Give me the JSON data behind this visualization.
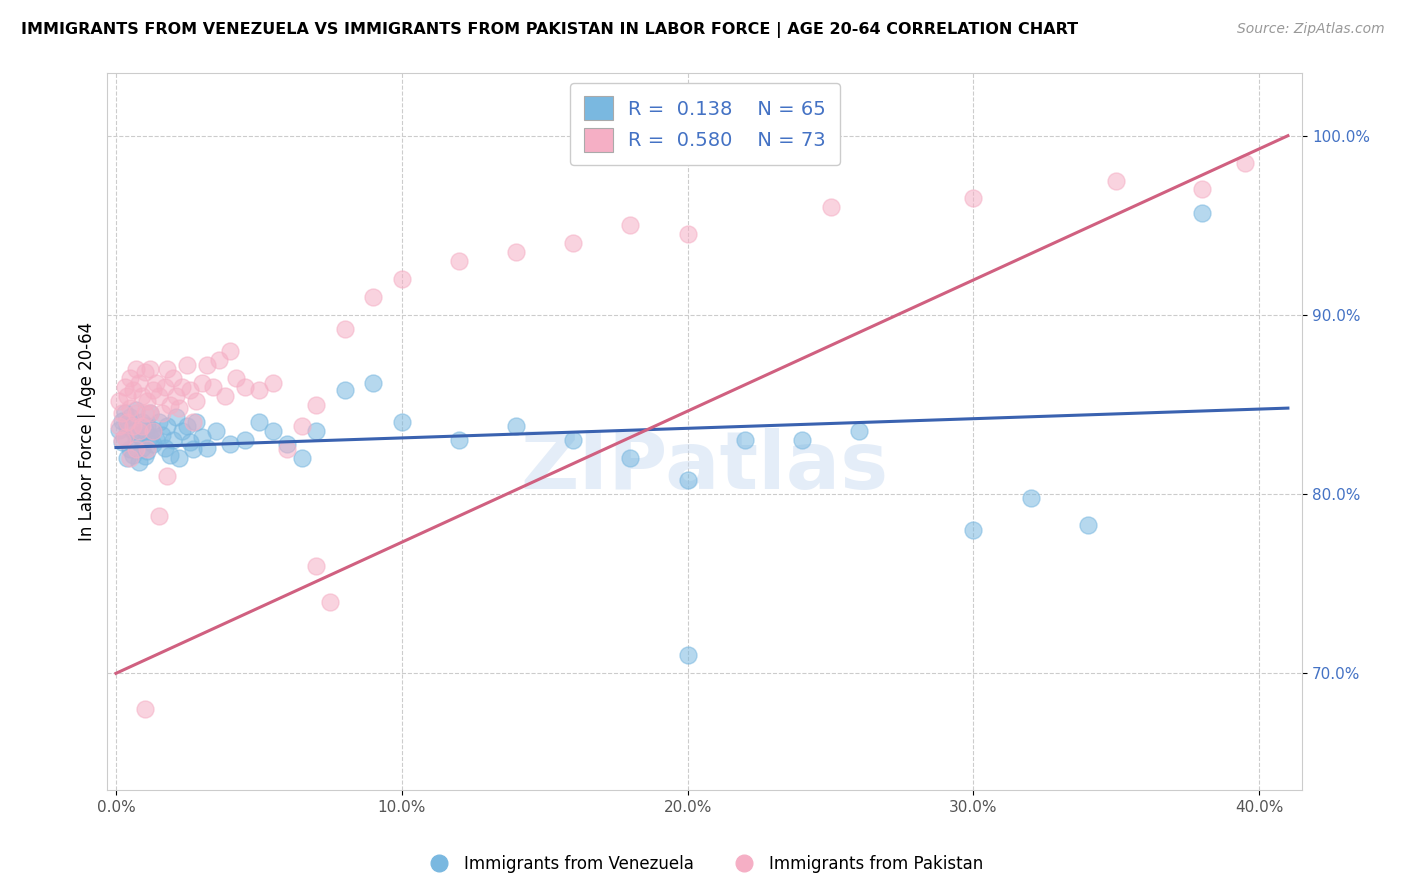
{
  "title": "IMMIGRANTS FROM VENEZUELA VS IMMIGRANTS FROM PAKISTAN IN LABOR FORCE | AGE 20-64 CORRELATION CHART",
  "source": "Source: ZipAtlas.com",
  "ylabel": "In Labor Force | Age 20-64",
  "xlim": [
    -0.003,
    0.415
  ],
  "ylim": [
    0.635,
    1.035
  ],
  "xticks": [
    0.0,
    0.1,
    0.2,
    0.3,
    0.4
  ],
  "yticks": [
    0.7,
    0.8,
    0.9,
    1.0
  ],
  "xtick_labels": [
    "0.0%",
    "10.0%",
    "20.0%",
    "30.0%",
    "40.0%"
  ],
  "ytick_labels": [
    "70.0%",
    "80.0%",
    "90.0%",
    "100.0%"
  ],
  "venezuela_color": "#7ab8e0",
  "pakistan_color": "#f5afc5",
  "line_color_venezuela": "#3a62b0",
  "line_color_pakistan": "#d06080",
  "venezuela_R": 0.138,
  "venezuela_N": 65,
  "pakistan_R": 0.58,
  "pakistan_N": 73,
  "watermark": "ZIPatlas",
  "venezuela_line_x": [
    0.0,
    0.41
  ],
  "venezuela_line_y": [
    0.826,
    0.848
  ],
  "pakistan_line_x": [
    0.0,
    0.41
  ],
  "pakistan_line_y": [
    0.7,
    1.0
  ],
  "venezuela_points_x": [
    0.001,
    0.002,
    0.002,
    0.003,
    0.003,
    0.004,
    0.004,
    0.005,
    0.005,
    0.006,
    0.006,
    0.007,
    0.007,
    0.008,
    0.008,
    0.009,
    0.009,
    0.01,
    0.01,
    0.011,
    0.011,
    0.012,
    0.012,
    0.013,
    0.013,
    0.014,
    0.015,
    0.016,
    0.017,
    0.018,
    0.019,
    0.02,
    0.021,
    0.022,
    0.023,
    0.025,
    0.026,
    0.027,
    0.028,
    0.03,
    0.032,
    0.035,
    0.04,
    0.045,
    0.05,
    0.055,
    0.06,
    0.065,
    0.07,
    0.08,
    0.09,
    0.1,
    0.12,
    0.14,
    0.16,
    0.18,
    0.2,
    0.22,
    0.24,
    0.26,
    0.3,
    0.32,
    0.34,
    0.38,
    0.2
  ],
  "venezuela_points_y": [
    0.836,
    0.829,
    0.841,
    0.832,
    0.845,
    0.838,
    0.82,
    0.843,
    0.825,
    0.835,
    0.822,
    0.83,
    0.847,
    0.833,
    0.818,
    0.84,
    0.826,
    0.835,
    0.821,
    0.838,
    0.824,
    0.832,
    0.845,
    0.828,
    0.836,
    0.831,
    0.84,
    0.833,
    0.826,
    0.838,
    0.822,
    0.83,
    0.843,
    0.82,
    0.835,
    0.838,
    0.829,
    0.825,
    0.84,
    0.832,
    0.826,
    0.835,
    0.828,
    0.83,
    0.84,
    0.835,
    0.828,
    0.82,
    0.835,
    0.858,
    0.862,
    0.84,
    0.83,
    0.838,
    0.83,
    0.82,
    0.808,
    0.83,
    0.83,
    0.835,
    0.78,
    0.798,
    0.783,
    0.957,
    0.71
  ],
  "pakistan_points_x": [
    0.001,
    0.001,
    0.002,
    0.002,
    0.003,
    0.003,
    0.004,
    0.004,
    0.005,
    0.005,
    0.005,
    0.006,
    0.006,
    0.007,
    0.007,
    0.007,
    0.008,
    0.008,
    0.009,
    0.009,
    0.01,
    0.01,
    0.011,
    0.011,
    0.012,
    0.012,
    0.013,
    0.013,
    0.014,
    0.015,
    0.016,
    0.017,
    0.018,
    0.019,
    0.02,
    0.021,
    0.022,
    0.023,
    0.025,
    0.026,
    0.027,
    0.028,
    0.03,
    0.032,
    0.034,
    0.036,
    0.038,
    0.04,
    0.042,
    0.045,
    0.05,
    0.055,
    0.06,
    0.065,
    0.07,
    0.08,
    0.09,
    0.1,
    0.12,
    0.14,
    0.16,
    0.18,
    0.2,
    0.25,
    0.3,
    0.35,
    0.38,
    0.395,
    0.015,
    0.018,
    0.07,
    0.075,
    0.01
  ],
  "pakistan_points_y": [
    0.838,
    0.852,
    0.83,
    0.845,
    0.86,
    0.832,
    0.855,
    0.84,
    0.865,
    0.848,
    0.82,
    0.858,
    0.838,
    0.87,
    0.845,
    0.825,
    0.862,
    0.835,
    0.855,
    0.838,
    0.868,
    0.845,
    0.852,
    0.825,
    0.87,
    0.845,
    0.858,
    0.835,
    0.862,
    0.855,
    0.845,
    0.86,
    0.87,
    0.85,
    0.865,
    0.855,
    0.848,
    0.86,
    0.872,
    0.858,
    0.84,
    0.852,
    0.862,
    0.872,
    0.86,
    0.875,
    0.855,
    0.88,
    0.865,
    0.86,
    0.858,
    0.862,
    0.825,
    0.838,
    0.85,
    0.892,
    0.91,
    0.92,
    0.93,
    0.935,
    0.94,
    0.95,
    0.945,
    0.96,
    0.965,
    0.975,
    0.97,
    0.985,
    0.788,
    0.81,
    0.76,
    0.74,
    0.68
  ]
}
